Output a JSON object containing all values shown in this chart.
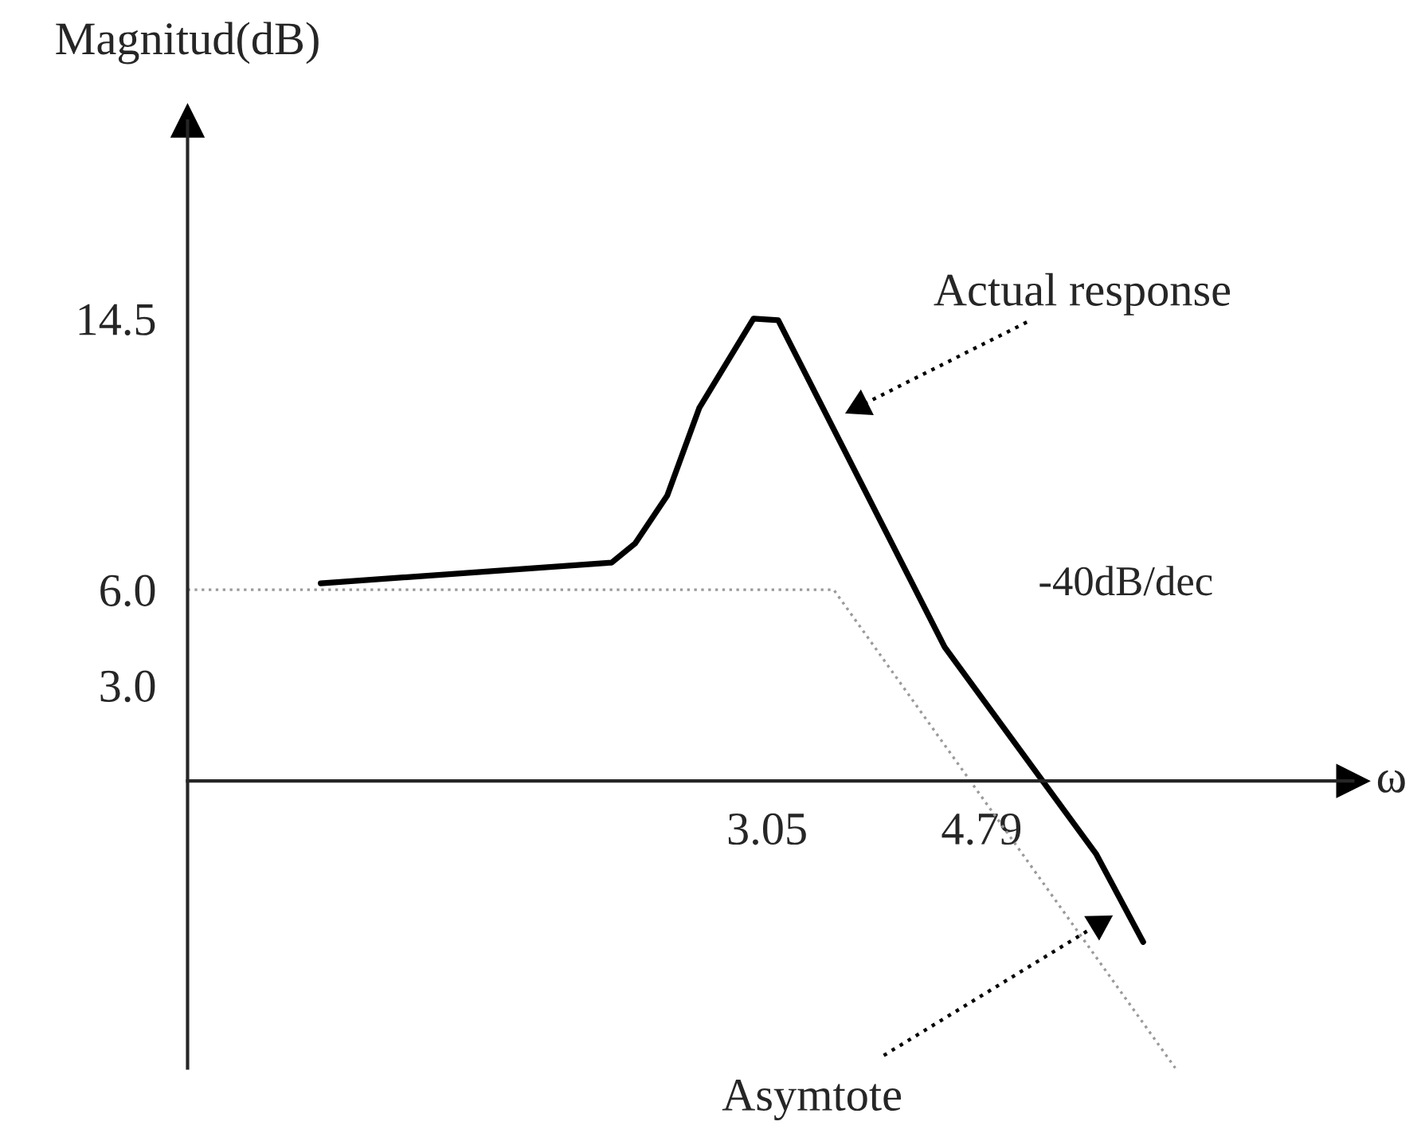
{
  "chart_data": {
    "type": "line",
    "ylabel": "Magnitud(dB)",
    "xlabel": "ω",
    "xlim": [
      -1.65,
      7.8
    ],
    "ylim": [
      -9,
      20.7
    ],
    "xticks": [
      3.05,
      4.79
    ],
    "yticks": [
      {
        "value": 3,
        "label": "3.0"
      },
      {
        "value": 6,
        "label": "6.0"
      },
      14.5
    ],
    "series": [
      {
        "color": "#000000",
        "line_style": "solid",
        "x": [
          -0.57,
          1.79,
          1.98,
          2.24,
          2.5,
          2.94,
          3.14,
          4.49,
          5.72,
          6.1
        ],
        "values": [
          6.2,
          6.85,
          7.45,
          8.95,
          11.7,
          14.5,
          14.45,
          4.2,
          -2.3,
          -5.05
        ]
      },
      {
        "color": "#9a9a9a",
        "line_style": "dotted",
        "x": [
          -1.65,
          3.59,
          6.36
        ],
        "values": [
          6,
          6,
          -9
        ]
      }
    ],
    "annotations": [
      "Actual response",
      "Asymtote",
      "-40dB/dec"
    ],
    "grid": false,
    "legend": false
  }
}
